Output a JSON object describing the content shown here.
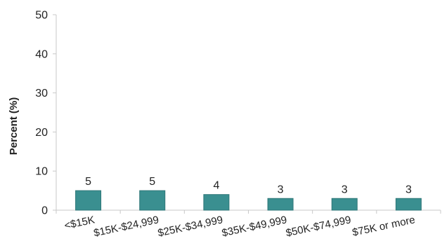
{
  "chart_data": {
    "type": "bar",
    "title": "",
    "xlabel": "",
    "ylabel": "Percent (%)",
    "ylim": [
      0,
      50
    ],
    "yticks": [
      0,
      10,
      20,
      30,
      40,
      50
    ],
    "grid": false,
    "categories": [
      "<$15K",
      "$15K-$24,999",
      "$25K-$34,999",
      "$35K-$49,999",
      "$50K-$74,999",
      "$75K or more"
    ],
    "values": [
      5,
      5,
      4,
      3,
      3,
      3
    ],
    "bar_color": "#3a8f90",
    "bar_edge_color": "#2e7677"
  }
}
